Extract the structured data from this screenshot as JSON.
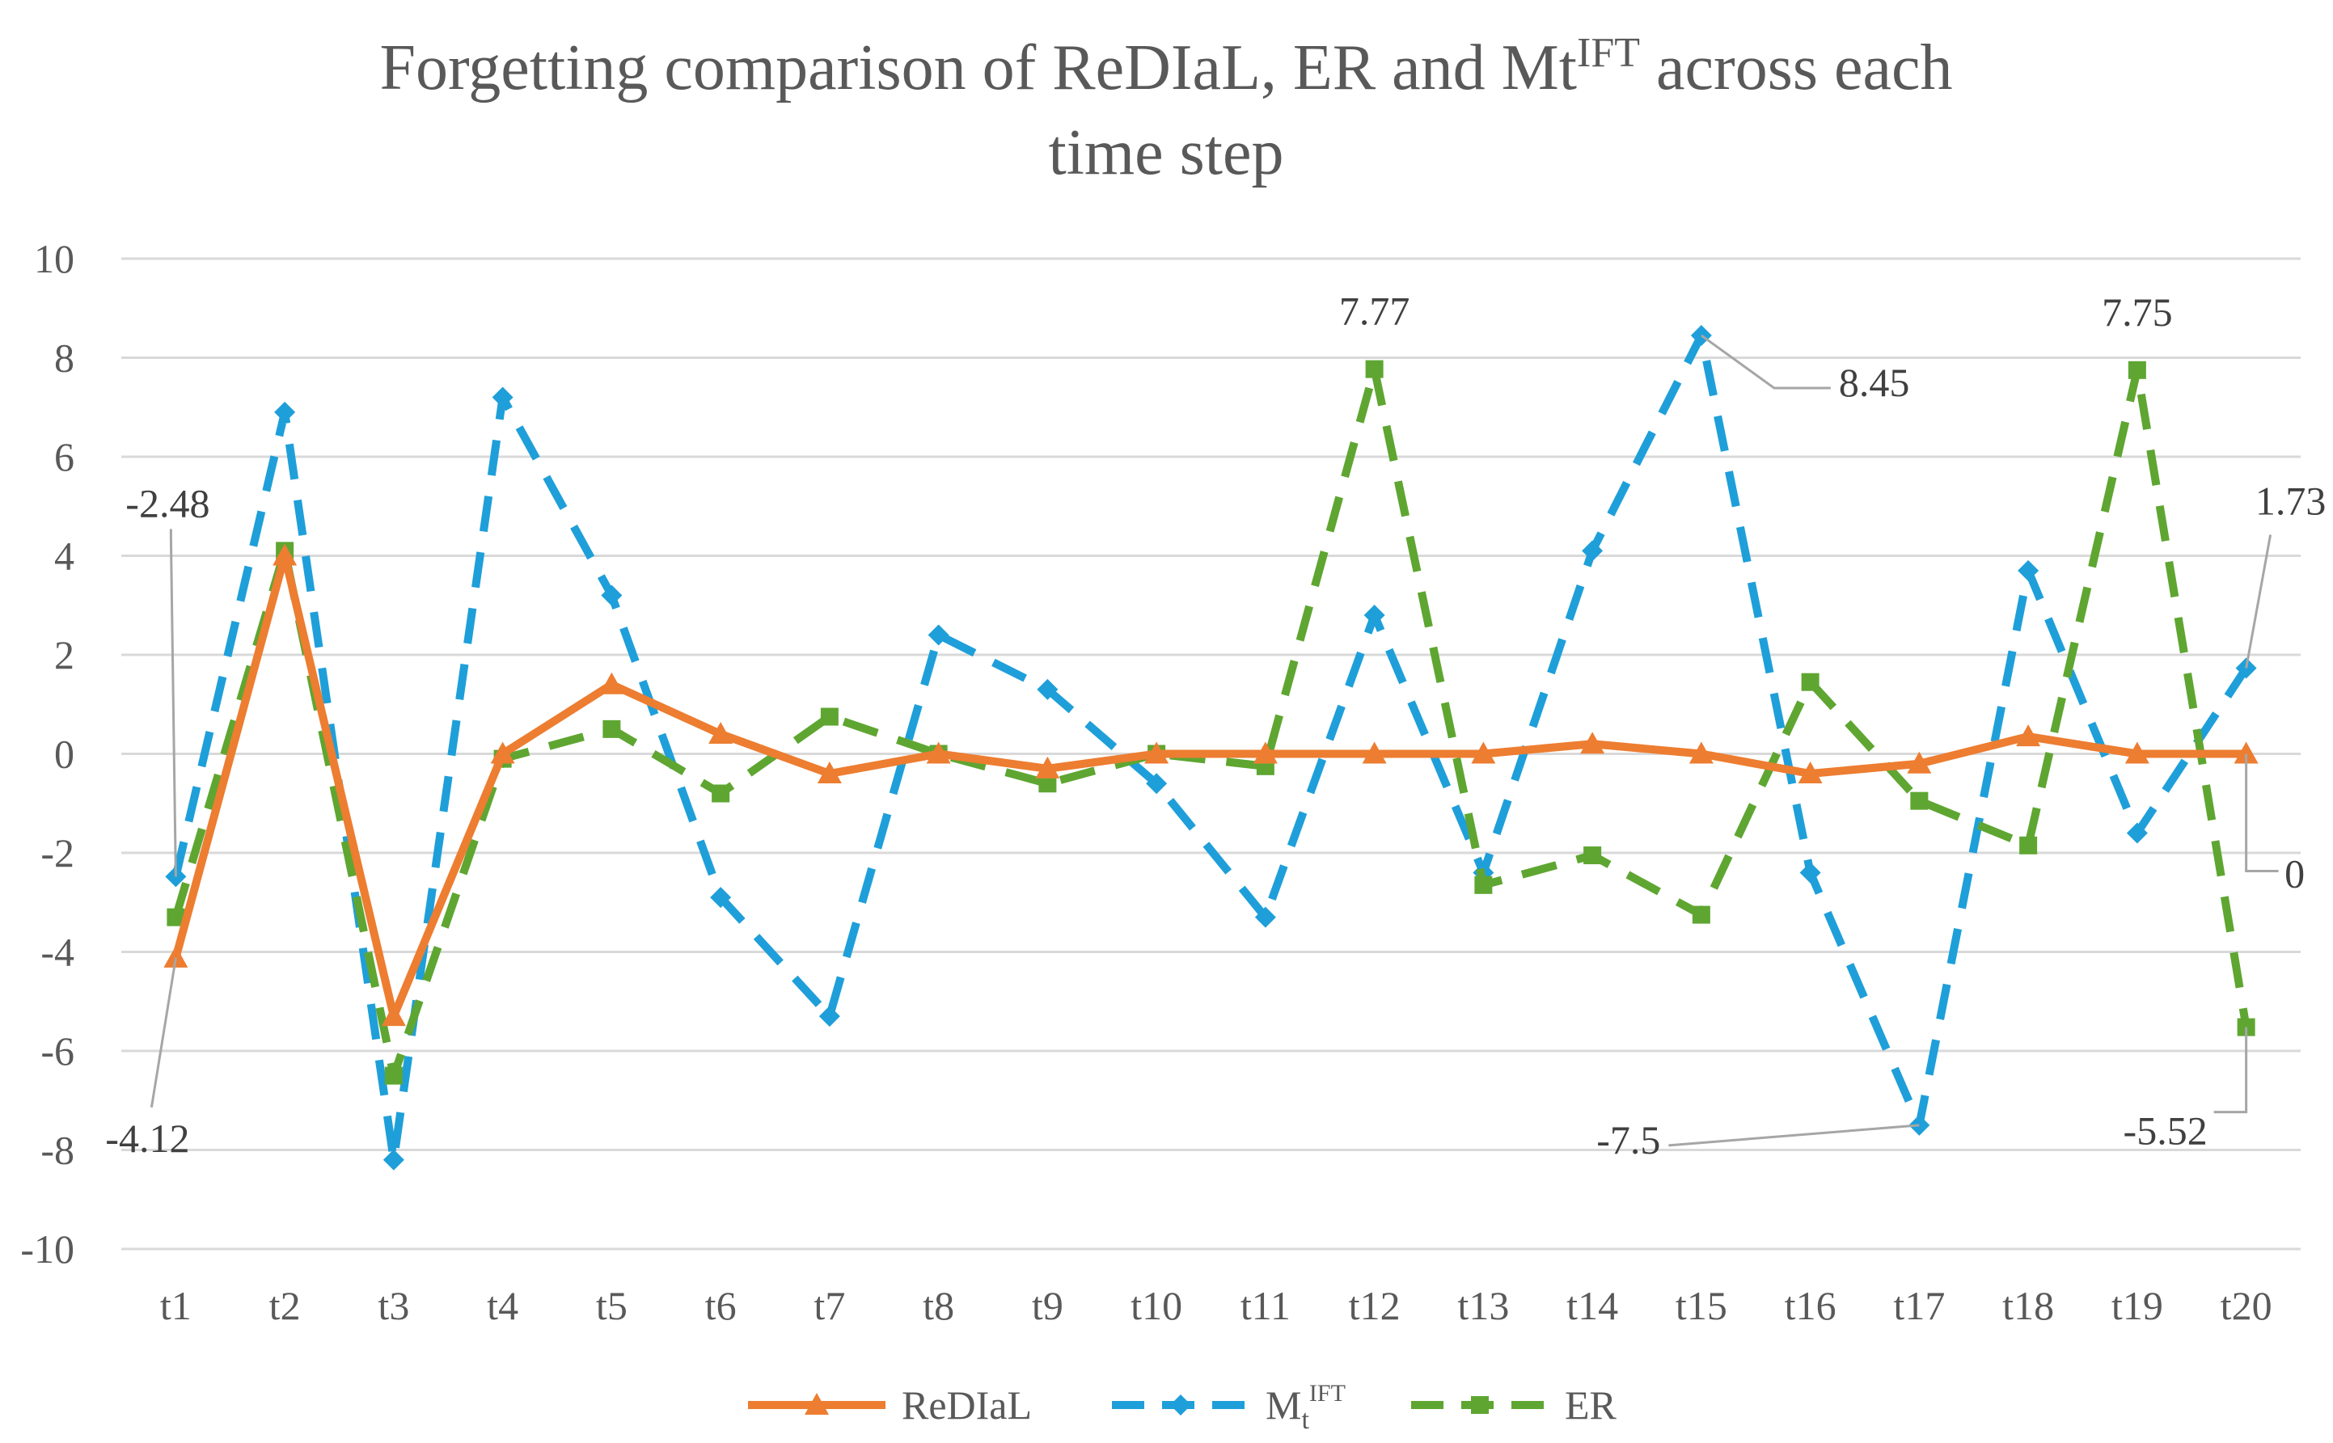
{
  "chart_data": {
    "type": "line",
    "title": "Forgetting comparison of ReDIaL, ER and Mt",
    "title_sup": "IFT",
    "title_rest": " across each",
    "title_line2": "time step",
    "xlabel": "",
    "ylabel": "",
    "ylim": [
      -10,
      10
    ],
    "yticks": [
      10,
      8,
      6,
      4,
      2,
      0,
      -2,
      -4,
      -6,
      -8,
      -10
    ],
    "grid": true,
    "legend_position": "bottom",
    "categories": [
      "t1",
      "t2",
      "t3",
      "t4",
      "t5",
      "t6",
      "t7",
      "t8",
      "t9",
      "t10",
      "t11",
      "t12",
      "t13",
      "t14",
      "t15",
      "t16",
      "t17",
      "t18",
      "t19",
      "t20"
    ],
    "series": [
      {
        "name": "ReDIaL",
        "color": "#ed7d31",
        "marker": "triangle",
        "dash": "solid",
        "values": [
          -4.12,
          4.0,
          -5.3,
          0.0,
          1.4,
          0.4,
          -0.4,
          0.0,
          -0.3,
          0.0,
          0.0,
          0.0,
          0.0,
          0.2,
          0.0,
          -0.4,
          -0.2,
          0.35,
          0.0,
          0.0
        ]
      },
      {
        "name": "Mt",
        "name_sub": "t",
        "name_sup": "IFT",
        "color": "#1f9fd9",
        "marker": "diamond",
        "dash": "dash",
        "values": [
          -2.48,
          6.9,
          -8.2,
          7.2,
          3.2,
          -2.9,
          -5.3,
          2.4,
          1.3,
          -0.6,
          -3.3,
          2.8,
          -2.4,
          4.1,
          8.45,
          -2.4,
          -7.5,
          3.7,
          -1.6,
          1.73
        ]
      },
      {
        "name": "ER",
        "color": "#5ea631",
        "marker": "square",
        "dash": "dash",
        "values": [
          -3.3,
          4.1,
          -6.5,
          -0.1,
          0.5,
          -0.8,
          0.75,
          0.0,
          -0.6,
          0.0,
          -0.25,
          7.77,
          -2.65,
          -2.05,
          -3.25,
          1.45,
          -0.95,
          -1.85,
          7.75,
          -5.52
        ]
      }
    ],
    "data_labels": [
      {
        "text": "-2.48",
        "series": 1,
        "index": 0
      },
      {
        "text": "-4.12",
        "series": 0,
        "index": 0
      },
      {
        "text": "7.77",
        "series": 2,
        "index": 11
      },
      {
        "text": "8.45",
        "series": 1,
        "index": 14
      },
      {
        "text": "-7.5",
        "series": 1,
        "index": 16
      },
      {
        "text": "7.75",
        "series": 2,
        "index": 18
      },
      {
        "text": "1.73",
        "series": 1,
        "index": 19
      },
      {
        "text": "0",
        "series": 0,
        "index": 19
      },
      {
        "text": "-5.52",
        "series": 2,
        "index": 19
      }
    ]
  }
}
